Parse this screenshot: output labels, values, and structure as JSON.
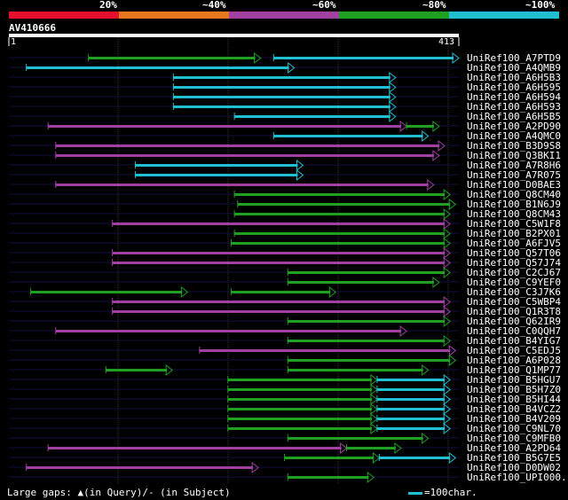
{
  "header": {
    "score_labels": [
      "20%",
      "~40%",
      "~60%",
      "~80%",
      "~100%"
    ],
    "score_colors": [
      "#e8102f",
      "#e87820",
      "#a040a0",
      "#20a020",
      "#20c0d0"
    ],
    "query_name": "AV410666",
    "query_start": "1",
    "query_end": "413"
  },
  "colors": {
    "magenta": "#a040a0",
    "green": "#20a020",
    "cyan": "#20c0d0",
    "bg": "#000000",
    "backline": "#101040",
    "grid": "#333333"
  },
  "query_length": 413,
  "hits": [
    {
      "name": "UniRef100_A7PTD9",
      "segs": [
        [
          73,
          231,
          "g"
        ],
        [
          243,
          413,
          "c"
        ]
      ]
    },
    {
      "name": "UniRef100_A4QMB9",
      "segs": [
        [
          16,
          262,
          "c"
        ]
      ]
    },
    {
      "name": "UniRef100_A6H5B3",
      "segs": [
        [
          151,
          355,
          "c"
        ]
      ]
    },
    {
      "name": "UniRef100_A6H595",
      "segs": [
        [
          151,
          355,
          "c"
        ]
      ]
    },
    {
      "name": "UniRef100_A6H594",
      "segs": [
        [
          151,
          355,
          "c"
        ]
      ]
    },
    {
      "name": "UniRef100_A6H593",
      "segs": [
        [
          151,
          355,
          "c"
        ]
      ]
    },
    {
      "name": "UniRef100_A6H5B5",
      "segs": [
        [
          207,
          355,
          "c"
        ]
      ]
    },
    {
      "name": "UniRef100_A2PD90",
      "segs": [
        [
          36,
          365,
          "m"
        ],
        [
          365,
          395,
          "g"
        ]
      ]
    },
    {
      "name": "UniRef100_A4QMC0",
      "segs": [
        [
          243,
          385,
          "c"
        ]
      ]
    },
    {
      "name": "UniRef100_B3D9S8",
      "segs": [
        [
          43,
          400,
          "m"
        ]
      ]
    },
    {
      "name": "UniRef100_Q3BKI1",
      "segs": [
        [
          43,
          395,
          "m"
        ]
      ]
    },
    {
      "name": "UniRef100_A7R8H6",
      "segs": [
        [
          116,
          270,
          "c"
        ]
      ]
    },
    {
      "name": "UniRef100_A7R075",
      "segs": [
        [
          116,
          270,
          "c"
        ]
      ]
    },
    {
      "name": "UniRef100_D0BAE3",
      "segs": [
        [
          43,
          390,
          "m"
        ]
      ]
    },
    {
      "name": "UniRef100_Q8CM40",
      "segs": [
        [
          207,
          405,
          "g"
        ]
      ]
    },
    {
      "name": "UniRef100_B1N6J9",
      "segs": [
        [
          210,
          410,
          "g"
        ]
      ]
    },
    {
      "name": "UniRef100_Q8CM43",
      "segs": [
        [
          207,
          405,
          "g"
        ]
      ]
    },
    {
      "name": "UniRef100_C5W1F8",
      "segs": [
        [
          95,
          405,
          "m"
        ]
      ]
    },
    {
      "name": "UniRef100_B2PX01",
      "segs": [
        [
          207,
          405,
          "g"
        ]
      ]
    },
    {
      "name": "UniRef100_A6FJV5",
      "segs": [
        [
          204,
          405,
          "g"
        ]
      ]
    },
    {
      "name": "UniRef100_Q57T06",
      "segs": [
        [
          95,
          405,
          "m"
        ]
      ]
    },
    {
      "name": "UniRef100_Q57J74",
      "segs": [
        [
          95,
          405,
          "m"
        ]
      ]
    },
    {
      "name": "UniRef100_C2CJ67",
      "segs": [
        [
          256,
          405,
          "g"
        ]
      ]
    },
    {
      "name": "UniRef100_C9YEF0",
      "segs": [
        [
          256,
          395,
          "g"
        ]
      ]
    },
    {
      "name": "UniRef100_C3J7K6",
      "segs": [
        [
          20,
          164,
          "g"
        ],
        [
          204,
          300,
          "g"
        ]
      ]
    },
    {
      "name": "UniRef100_C5WBP4",
      "segs": [
        [
          95,
          405,
          "m"
        ]
      ]
    },
    {
      "name": "UniRef100_Q1R3T8",
      "segs": [
        [
          95,
          405,
          "m"
        ]
      ]
    },
    {
      "name": "UniRef100_Q62IR9",
      "segs": [
        [
          256,
          405,
          "g"
        ]
      ]
    },
    {
      "name": "UniRef100_C0QQH7",
      "segs": [
        [
          43,
          365,
          "m"
        ]
      ]
    },
    {
      "name": "UniRef100_B4YIG7",
      "segs": [
        [
          256,
          405,
          "g"
        ]
      ]
    },
    {
      "name": "UniRef100_C5EDJ5",
      "segs": [
        [
          175,
          410,
          "m"
        ]
      ]
    },
    {
      "name": "UniRef100_A6P028",
      "segs": [
        [
          256,
          410,
          "g"
        ]
      ]
    },
    {
      "name": "UniRef100_Q1MP77",
      "segs": [
        [
          89,
          150,
          "g"
        ],
        [
          256,
          385,
          "g"
        ]
      ]
    },
    {
      "name": "UniRef100_B5HGU7",
      "segs": [
        [
          201,
          338,
          "g"
        ],
        [
          338,
          405,
          "c"
        ]
      ]
    },
    {
      "name": "UniRef100_B5H7Z0",
      "segs": [
        [
          201,
          338,
          "g"
        ],
        [
          338,
          405,
          "c"
        ]
      ]
    },
    {
      "name": "UniRef100_B5HI44",
      "segs": [
        [
          201,
          338,
          "g"
        ],
        [
          338,
          405,
          "c"
        ]
      ]
    },
    {
      "name": "UniRef100_B4VCZ2",
      "segs": [
        [
          201,
          338,
          "g"
        ],
        [
          338,
          405,
          "c"
        ]
      ]
    },
    {
      "name": "UniRef100_B4V209",
      "segs": [
        [
          201,
          338,
          "g"
        ],
        [
          338,
          405,
          "c"
        ]
      ]
    },
    {
      "name": "UniRef100_C9NL70",
      "segs": [
        [
          201,
          338,
          "g"
        ],
        [
          338,
          405,
          "c"
        ]
      ]
    },
    {
      "name": "UniRef100_C9MFB0",
      "segs": [
        [
          256,
          385,
          "g"
        ]
      ]
    },
    {
      "name": "UniRef100_A2PD64",
      "segs": [
        [
          36,
          310,
          "m"
        ],
        [
          310,
          360,
          "g"
        ]
      ]
    },
    {
      "name": "UniRef100_B5G7E5",
      "segs": [
        [
          253,
          340,
          "g"
        ],
        [
          340,
          410,
          "c"
        ]
      ]
    },
    {
      "name": "UniRef100_D0DW02",
      "segs": [
        [
          16,
          229,
          "m"
        ]
      ]
    },
    {
      "name": "UniRef100_UPI000...",
      "segs": [
        [
          256,
          335,
          "g"
        ]
      ]
    }
  ],
  "footer": {
    "legend_text": "Large gaps: ▲(in Query)/- (in Subject)",
    "scale_text": "=100char."
  }
}
